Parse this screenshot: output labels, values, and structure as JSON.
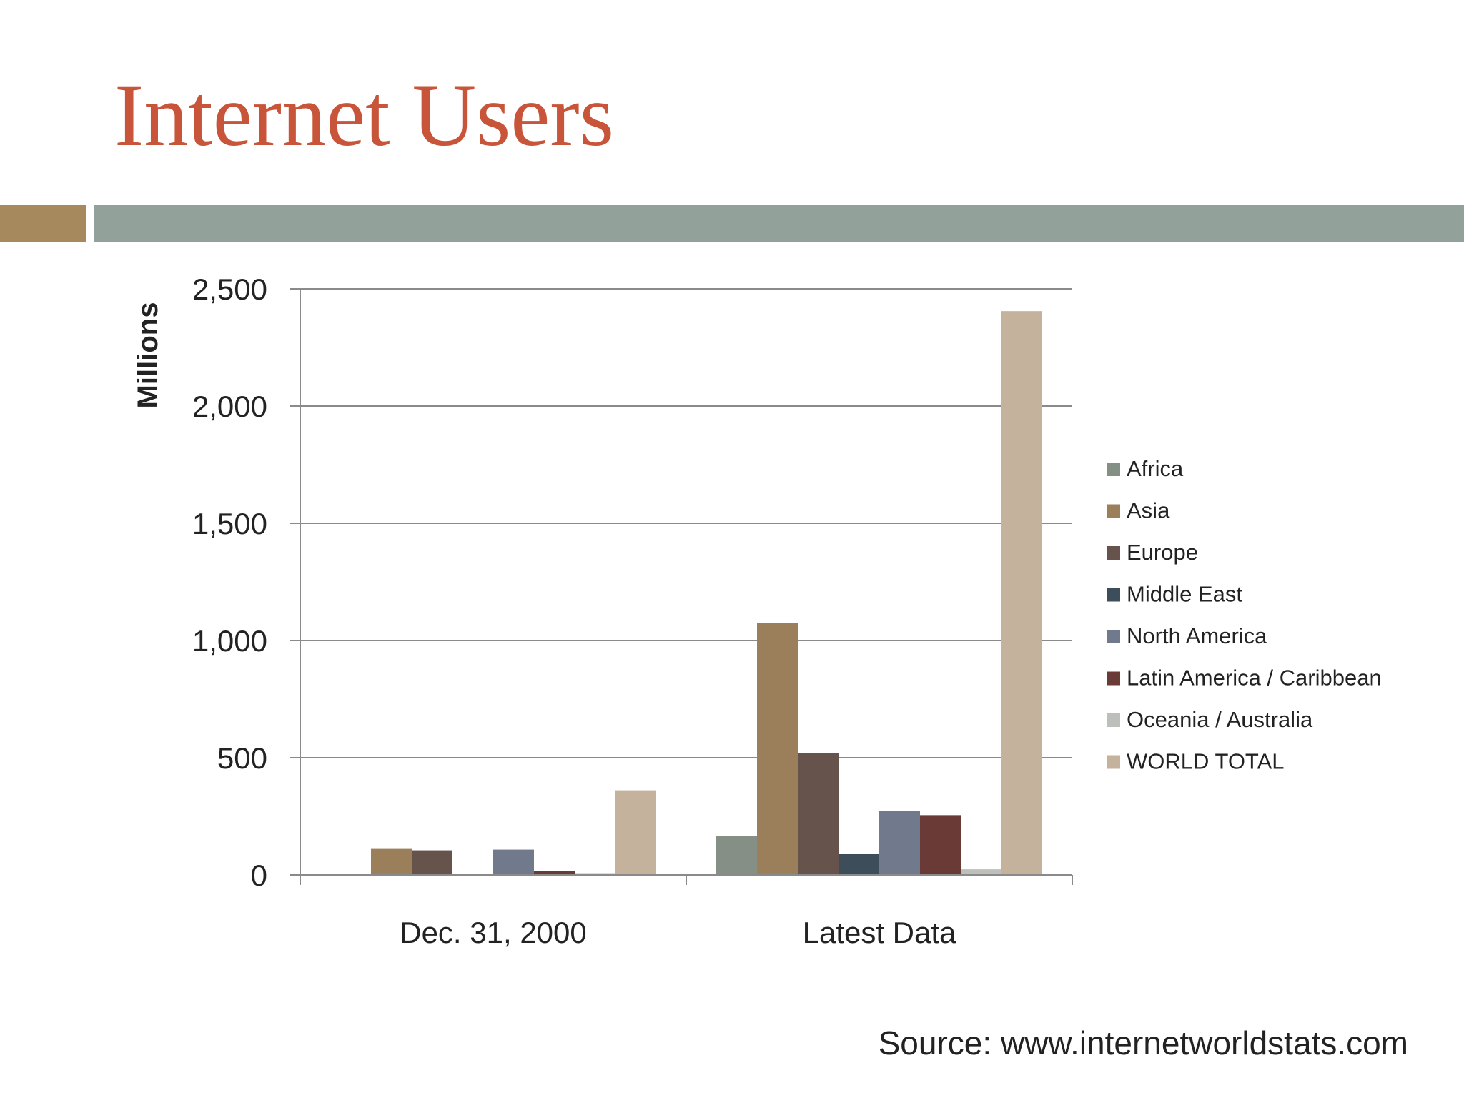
{
  "title": "Internet Users",
  "source": "Source: www.internetworldstats.com",
  "colors": {
    "title": "#c8553a",
    "band_left": "#a68a5e",
    "band_right": "#92a199"
  },
  "chart_data": {
    "type": "bar",
    "categories": [
      "Dec. 31, 2000",
      "Latest Data"
    ],
    "ylabel": "Millions",
    "ylim": [
      0,
      2500
    ],
    "yticks": [
      "0",
      "500",
      "1,000",
      "1,500",
      "2,000",
      "2,500"
    ],
    "ytick_values": [
      0,
      500,
      1000,
      1500,
      2000,
      2500
    ],
    "grid": true,
    "legend_position": "right",
    "series": [
      {
        "name": "Africa",
        "color": "#858f86",
        "values": [
          4.5,
          167
        ]
      },
      {
        "name": "Asia",
        "color": "#9a7f5a",
        "values": [
          114,
          1076
        ]
      },
      {
        "name": "Europe",
        "color": "#66544c",
        "values": [
          105,
          519
        ]
      },
      {
        "name": "Middle East",
        "color": "#3e4d5a",
        "values": [
          3.3,
          90
        ]
      },
      {
        "name": "North America",
        "color": "#717a8d",
        "values": [
          108,
          274
        ]
      },
      {
        "name": "Latin America / Caribbean",
        "color": "#6a3b36",
        "values": [
          18,
          255
        ]
      },
      {
        "name": "Oceania / Australia",
        "color": "#bdbfbb",
        "values": [
          7.6,
          24
        ]
      },
      {
        "name": "WORLD TOTAL",
        "color": "#c5b29c",
        "values": [
          361,
          2405
        ]
      }
    ]
  }
}
